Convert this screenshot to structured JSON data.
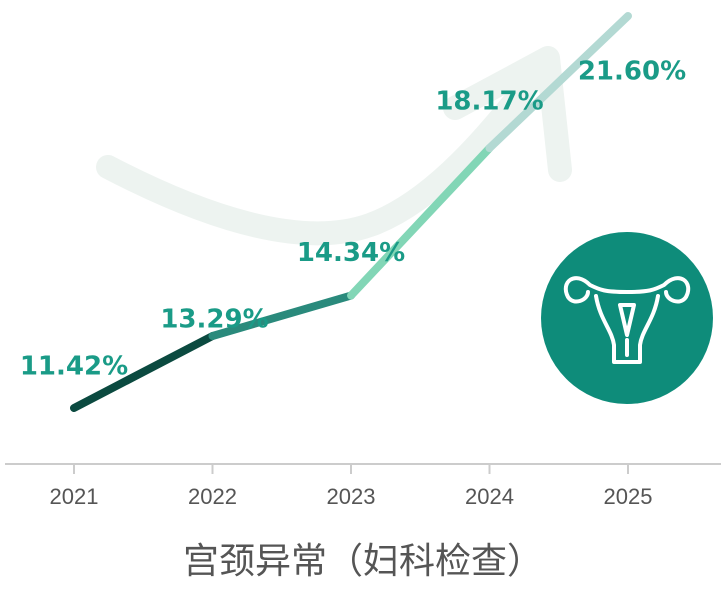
{
  "chart_data": {
    "type": "line",
    "title": "宫颈异常（妇科检查）",
    "categories": [
      "2021",
      "2022",
      "2023",
      "2024",
      "2025"
    ],
    "values": [
      11.42,
      13.29,
      14.34,
      18.17,
      21.6
    ],
    "value_labels": [
      "11.42%",
      "13.29%",
      "14.34%",
      "18.17%",
      "21.60%"
    ],
    "segment_colors": [
      "#0b4a40",
      "#2a8a7c",
      "#82d6b6",
      "#b3d9d3"
    ]
  }
}
